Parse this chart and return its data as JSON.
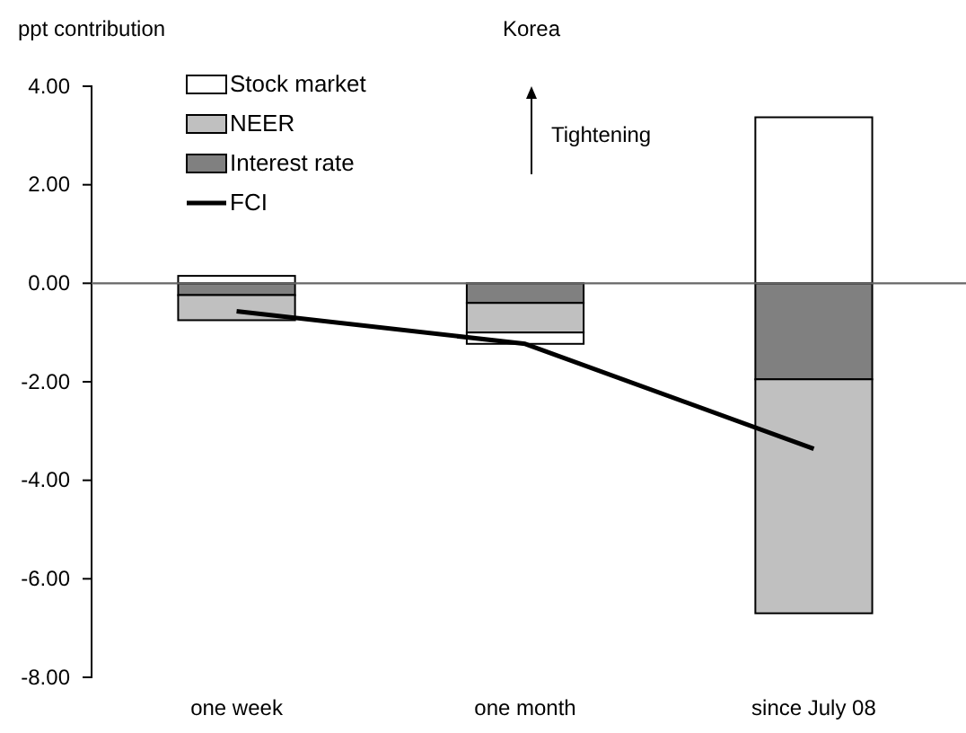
{
  "chart_data": {
    "type": "bar",
    "title": "Korea",
    "ylabel": "ppt contribution",
    "categories": [
      "one week",
      "one month",
      "since July 08"
    ],
    "stacked": true,
    "series": [
      {
        "name": "Interest rate",
        "color": "#808080",
        "values": [
          -0.24,
          -0.4,
          -1.95
        ]
      },
      {
        "name": "NEER",
        "color": "#c0c0c0",
        "values": [
          -0.51,
          -0.6,
          -4.75
        ]
      },
      {
        "name": "Stock market",
        "color": "#ffffff",
        "values": [
          0.15,
          -0.23,
          3.37
        ]
      },
      {
        "name": "FCI",
        "type": "line",
        "color": "#000000",
        "values": [
          -0.57,
          -1.23,
          -3.36
        ]
      }
    ],
    "ylim": [
      -8,
      4
    ],
    "yticks": [
      {
        "value": -8,
        "label": "-8.00"
      },
      {
        "value": -6,
        "label": "-6.00"
      },
      {
        "value": -4,
        "label": "-4.00"
      },
      {
        "value": -2,
        "label": "-2.00"
      },
      {
        "value": 0,
        "label": "0.00"
      },
      {
        "value": 2,
        "label": "2.00"
      },
      {
        "value": 4,
        "label": "4.00"
      }
    ],
    "legend": "top left",
    "annotations": [
      "Tightening"
    ]
  }
}
